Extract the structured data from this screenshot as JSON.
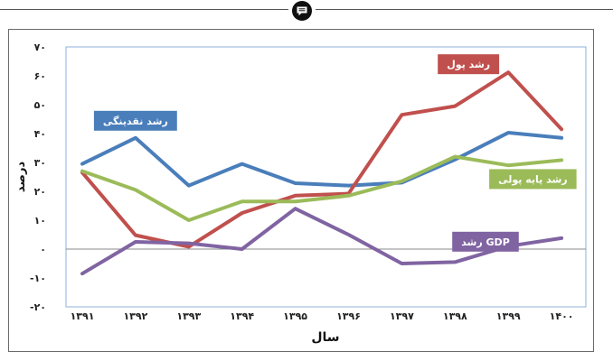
{
  "chart_data": {
    "type": "line",
    "xlabel": "سال",
    "ylabel": "درصد",
    "x": [
      "۱۳۹۱",
      "۱۳۹۲",
      "۱۳۹۳",
      "۱۳۹۴",
      "۱۳۹۵",
      "۱۳۹۶",
      "۱۳۹۷",
      "۱۳۹۸",
      "۱۳۹۹",
      "۱۴۰۰"
    ],
    "ylim": [
      -20,
      70
    ],
    "yticks": [
      -20,
      -10,
      0,
      10,
      20,
      30,
      40,
      50,
      60,
      70
    ],
    "ytick_labels": [
      "-۲۰",
      "-۱۰",
      "۰",
      "۱۰",
      "۲۰",
      "۳۰",
      "۴۰",
      "۵۰",
      "۶۰",
      "۷۰"
    ],
    "grid": false,
    "zero_line": true,
    "series": [
      {
        "name": "رشد نقدینگی",
        "color": "#4a7ebb",
        "values": [
          29.5,
          38.5,
          22,
          29.5,
          22.8,
          22,
          23,
          31,
          40.3,
          38.5
        ],
        "label_at": 1
      },
      {
        "name": "رشد پول",
        "color": "#c0504d",
        "values": [
          26.5,
          4.8,
          0.8,
          12.5,
          18.5,
          19.2,
          46.5,
          49.5,
          61.2,
          41.5
        ],
        "label_at": 8
      },
      {
        "name": "رشد پایه پولی",
        "color": "#9bbb59",
        "values": [
          27,
          20.5,
          10,
          16.5,
          16.5,
          18.5,
          23.5,
          32,
          29,
          30.8
        ],
        "label_at": 9
      },
      {
        "name": "رشد GDP",
        "color": "#8064a2",
        "values": [
          -8.5,
          2.5,
          2,
          0,
          14,
          5,
          -5,
          -4.5,
          1,
          3.8
        ],
        "label_at": 8
      }
    ]
  }
}
